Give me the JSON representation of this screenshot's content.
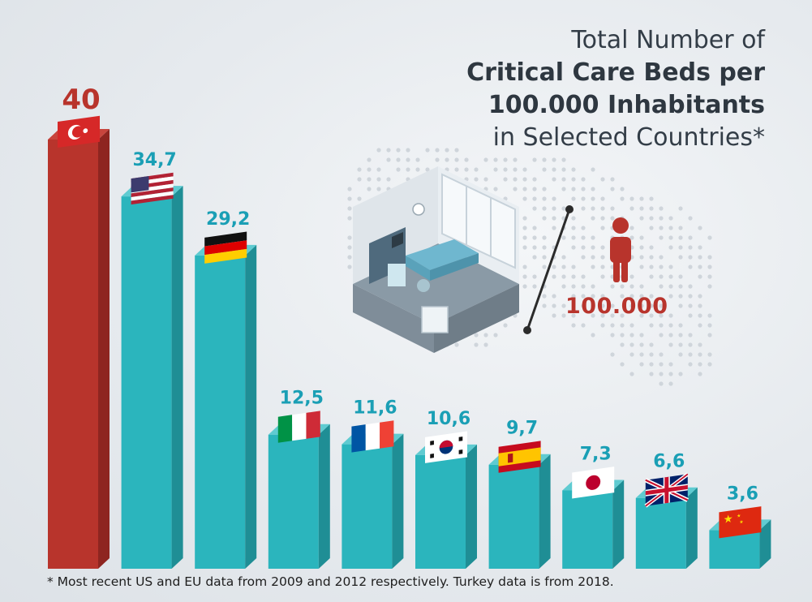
{
  "title": {
    "line1": "Total Number of",
    "line2": "Critical Care Beds per",
    "line3": "100.000 Inhabitants",
    "line4": "in Selected Countries*"
  },
  "footnote": "* Most recent US and EU data from 2009 and 2012 respectively. Turkey data is from 2018.",
  "illustration": {
    "population_label": "100.000",
    "icons": [
      "hospital-room-icon",
      "person-icon",
      "world-map-dots"
    ]
  },
  "colors": {
    "highlight": "#b8342c",
    "bar": "#2bb5bd",
    "value_label_teal": "#1a9fb5",
    "value_label_red": "#b8342c"
  },
  "chart_data": {
    "type": "bar",
    "categories": [
      "Turkey",
      "United States",
      "Germany",
      "Italy",
      "France",
      "South Korea",
      "Spain",
      "Japan",
      "United Kingdom",
      "China"
    ],
    "values": [
      40,
      34.7,
      29.2,
      12.5,
      11.6,
      10.6,
      9.7,
      7.3,
      6.6,
      3.6
    ],
    "value_labels": [
      "40",
      "34,7",
      "29,2",
      "12,5",
      "11,6",
      "10,6",
      "9,7",
      "7,3",
      "6,6",
      "3,6"
    ],
    "flags": [
      "turkey-flag-icon",
      "usa-flag-icon",
      "germany-flag-icon",
      "italy-flag-icon",
      "france-flag-icon",
      "south-korea-flag-icon",
      "spain-flag-icon",
      "japan-flag-icon",
      "uk-flag-icon",
      "china-flag-icon"
    ],
    "highlight_index": 0,
    "ylim": [
      0,
      40
    ],
    "grid": false,
    "xlabel": "",
    "ylabel": ""
  }
}
